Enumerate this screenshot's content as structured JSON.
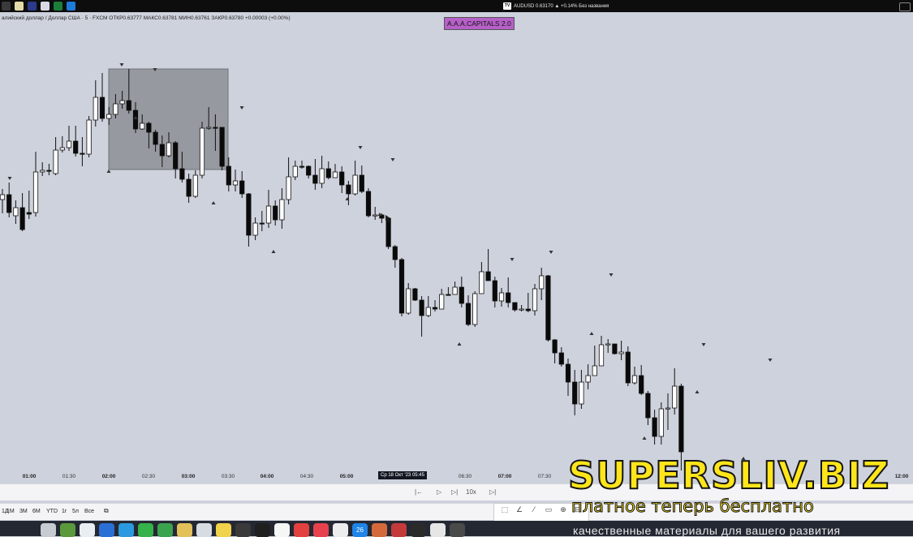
{
  "menubar": {
    "ticker_text": "AUDUSD 0.63170 ▲ +0.14% Без названия",
    "tv_logo": "TV",
    "app_icons": [
      "#3a3a3a",
      "#e4d9a8",
      "#2c3a8a",
      "#d9d9e5",
      "#1b7d3a",
      "#1e7bd9"
    ]
  },
  "chart_header": {
    "legend": "алийский доллар / Доллар США · 5 · FXCM  ОТКР0.63777  МАКС0.63781  МИН0.63761  ЗАКР0.63780  +0.00003 (+0.00%)",
    "badge": "A.A.A.CAPITALS 2.0"
  },
  "chart_data": {
    "type": "candlestick",
    "title": "",
    "xlabel": "",
    "ylabel": "",
    "interval": "5",
    "symbol": "AUD/USD FXCM",
    "x_tick_labels": [
      "01:00",
      "01:30",
      "02:00",
      "02:30",
      "03:00",
      "03:30",
      "04:00",
      "04:30",
      "05:00",
      "06:30",
      "07:00",
      "07:30",
      "12:00"
    ],
    "crosshair_label": "Ср 18 Окт '23   05:45",
    "last_ohlc": {
      "open": 0.63777,
      "high": 0.63781,
      "low": 0.63761,
      "close": 0.6378,
      "change": "+0.00003 (+0.00%)"
    },
    "highlight_zone": {
      "from": "02:00",
      "to": "03:35"
    },
    "candles": [
      [
        246,
        240,
        263,
        233
      ],
      [
        240,
        262,
        268,
        225
      ],
      [
        266,
        256,
        276,
        247
      ],
      [
        256,
        283,
        285,
        238
      ],
      [
        262,
        264,
        270,
        235
      ],
      [
        262,
        212,
        267,
        187
      ],
      [
        212,
        210,
        217,
        200
      ],
      [
        210,
        210,
        216,
        202
      ],
      [
        214,
        185,
        216,
        169
      ],
      [
        185,
        182,
        188,
        168
      ],
      [
        182,
        174,
        186,
        155
      ],
      [
        174,
        189,
        193,
        155
      ],
      [
        189,
        190,
        205,
        169
      ],
      [
        190,
        148,
        194,
        143
      ],
      [
        148,
        120,
        156,
        99
      ],
      [
        120,
        146,
        150,
        90
      ],
      [
        146,
        141,
        154,
        132
      ],
      [
        141,
        128,
        146,
        116
      ],
      [
        128,
        124,
        134,
        112
      ],
      [
        124,
        136,
        140,
        85
      ],
      [
        136,
        159,
        164,
        126
      ],
      [
        159,
        152,
        160,
        141
      ],
      [
        152,
        163,
        183,
        150
      ],
      [
        163,
        178,
        187,
        160
      ],
      [
        178,
        192,
        206,
        167
      ],
      [
        192,
        176,
        194,
        163
      ],
      [
        176,
        208,
        220,
        174
      ],
      [
        208,
        221,
        225,
        187
      ],
      [
        221,
        242,
        250,
        214
      ],
      [
        242,
        216,
        244,
        210
      ],
      [
        216,
        158,
        220,
        150
      ],
      [
        158,
        157,
        160,
        132
      ],
      [
        157,
        157,
        186,
        141
      ],
      [
        157,
        205,
        210,
        157
      ],
      [
        205,
        228,
        236,
        194
      ],
      [
        228,
        223,
        236,
        209
      ],
      [
        223,
        239,
        244,
        211
      ],
      [
        239,
        290,
        304,
        238
      ],
      [
        290,
        275,
        296,
        268
      ],
      [
        275,
        275,
        285,
        260
      ],
      [
        275,
        254,
        281,
        234
      ],
      [
        254,
        271,
        278,
        247
      ],
      [
        271,
        246,
        282,
        232
      ],
      [
        246,
        218,
        252,
        194
      ],
      [
        218,
        205,
        222,
        198
      ],
      [
        205,
        205,
        208,
        198
      ],
      [
        205,
        216,
        220,
        204
      ],
      [
        216,
        226,
        234,
        196
      ],
      [
        226,
        208,
        232,
        192
      ],
      [
        208,
        219,
        221,
        199
      ],
      [
        219,
        212,
        218,
        202
      ],
      [
        212,
        228,
        238,
        205
      ],
      [
        228,
        239,
        253,
        223
      ],
      [
        239,
        216,
        241,
        198
      ],
      [
        216,
        236,
        238,
        204
      ],
      [
        236,
        266,
        268,
        232
      ],
      [
        266,
        265,
        271,
        255
      ],
      [
        265,
        269,
        275,
        263
      ],
      [
        269,
        304,
        307,
        268
      ],
      [
        304,
        320,
        330,
        302
      ],
      [
        320,
        386,
        390,
        318
      ],
      [
        386,
        356,
        388,
        349
      ],
      [
        356,
        370,
        371,
        355
      ],
      [
        370,
        389,
        415,
        365
      ],
      [
        389,
        379,
        391,
        365
      ],
      [
        379,
        381,
        384,
        370
      ],
      [
        381,
        363,
        381,
        356
      ],
      [
        363,
        363,
        364,
        354
      ],
      [
        363,
        354,
        361,
        347
      ],
      [
        354,
        374,
        379,
        341
      ],
      [
        374,
        400,
        402,
        364
      ],
      [
        400,
        362,
        403,
        359
      ],
      [
        362,
        335,
        336,
        323
      ],
      [
        335,
        346,
        346,
        307
      ],
      [
        346,
        371,
        379,
        341
      ],
      [
        371,
        361,
        378,
        355
      ],
      [
        361,
        373,
        379,
        342
      ],
      [
        373,
        382,
        384,
        374
      ],
      [
        382,
        381,
        384,
        376
      ],
      [
        381,
        383,
        385,
        361
      ],
      [
        383,
        356,
        389,
        350
      ],
      [
        356,
        340,
        370,
        330
      ],
      [
        340,
        419,
        421,
        339
      ],
      [
        419,
        435,
        448,
        418
      ],
      [
        435,
        449,
        452,
        428
      ],
      [
        449,
        471,
        488,
        442
      ],
      [
        471,
        498,
        512,
        456
      ],
      [
        498,
        471,
        504,
        456
      ],
      [
        471,
        463,
        480,
        449
      ],
      [
        463,
        451,
        456,
        426
      ],
      [
        451,
        425,
        445,
        414
      ],
      [
        425,
        424,
        435,
        418
      ],
      [
        424,
        436,
        437,
        425
      ],
      [
        436,
        434,
        444,
        420
      ],
      [
        434,
        472,
        476,
        427
      ],
      [
        472,
        463,
        474,
        452
      ],
      [
        463,
        485,
        487,
        450
      ],
      [
        485,
        515,
        524,
        482
      ],
      [
        515,
        538,
        548,
        505
      ],
      [
        538,
        504,
        548,
        496
      ],
      [
        504,
        503,
        530,
        485
      ],
      [
        503,
        476,
        511,
        454
      ],
      [
        476,
        557,
        590,
        473
      ]
    ],
    "markers_down": [
      [
        12,
        220
      ],
      [
        150,
        80
      ],
      [
        191,
        86
      ],
      [
        298,
        133
      ],
      [
        444,
        182
      ],
      [
        484,
        197
      ],
      [
        631,
        320
      ],
      [
        679,
        311
      ],
      [
        753,
        339
      ],
      [
        867,
        425
      ],
      [
        949,
        444
      ]
    ],
    "markers_up": [
      [
        134,
        211
      ],
      [
        167,
        145
      ],
      [
        263,
        250
      ],
      [
        337,
        310
      ],
      [
        428,
        245
      ],
      [
        468,
        264
      ],
      [
        566,
        424
      ],
      [
        729,
        411
      ],
      [
        794,
        540
      ],
      [
        859,
        483
      ],
      [
        916,
        565
      ]
    ]
  },
  "replay_bar": {
    "back": "|←",
    "play": "▷",
    "step": "▷|",
    "speed": "10x",
    "forward": "▷|"
  },
  "bottom_bar": {
    "timeframes": [
      "1Д",
      "1М",
      "3М",
      "6М",
      "YTD",
      "1г",
      "5л",
      "Все"
    ],
    "calendar_icon": "calendar-range-icon"
  },
  "draw_tools": [
    "⬚",
    "∠",
    "⁄",
    "▭",
    "⊕",
    "⊟"
  ],
  "dock": {
    "icons": [
      "#c6cbd2",
      "#5a9a3d",
      "#e9eef2",
      "#2a6fd6",
      "#2a9ae0",
      "#35b24a",
      "#3ba34d",
      "#e2c15a",
      "#d7dce2",
      "#f0d24b",
      "#3a3a3a",
      "#1f1f1f",
      "#f6f6f6",
      "#e34040",
      "#e6414d",
      "#ededed",
      "#1f84e8",
      "#d46a3b",
      "#c43a3a",
      "#2a2a2a",
      "#e6e6e6",
      "#4a4a4a"
    ],
    "date_tile": "26",
    "caption": "качественные материалы для вашего развития"
  },
  "watermark": {
    "site": "SUPERSLIV.BIZ",
    "tagline": "платное теперь бесплатно"
  }
}
